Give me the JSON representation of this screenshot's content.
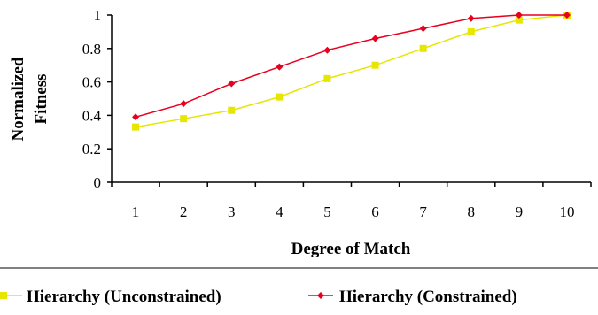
{
  "chart_data": {
    "type": "line",
    "xlabel": "Degree of Match",
    "ylabel": [
      "Normalized",
      "Fitness"
    ],
    "x": [
      1,
      2,
      3,
      4,
      5,
      6,
      7,
      8,
      9,
      10
    ],
    "x_tick_labels": [
      "1",
      "2",
      "3",
      "4",
      "5",
      "6",
      "7",
      "8",
      "9",
      "10"
    ],
    "y_tick_labels": [
      "0",
      "0.2",
      "0.4",
      "0.6",
      "0.8",
      "1"
    ],
    "ylim": [
      0,
      1
    ],
    "grid": false,
    "legend_position": "bottom",
    "series": [
      {
        "name": "Hierarchy (Unconstrained)",
        "color": "#e6e600",
        "marker": "square",
        "values": [
          0.33,
          0.38,
          0.43,
          0.51,
          0.62,
          0.7,
          0.8,
          0.9,
          0.97,
          1.0
        ]
      },
      {
        "name": "Hierarchy (Constrained)",
        "color": "#e8001e",
        "marker": "diamond",
        "values": [
          0.39,
          0.47,
          0.59,
          0.69,
          0.79,
          0.86,
          0.92,
          0.98,
          1.0,
          1.0
        ]
      }
    ]
  }
}
